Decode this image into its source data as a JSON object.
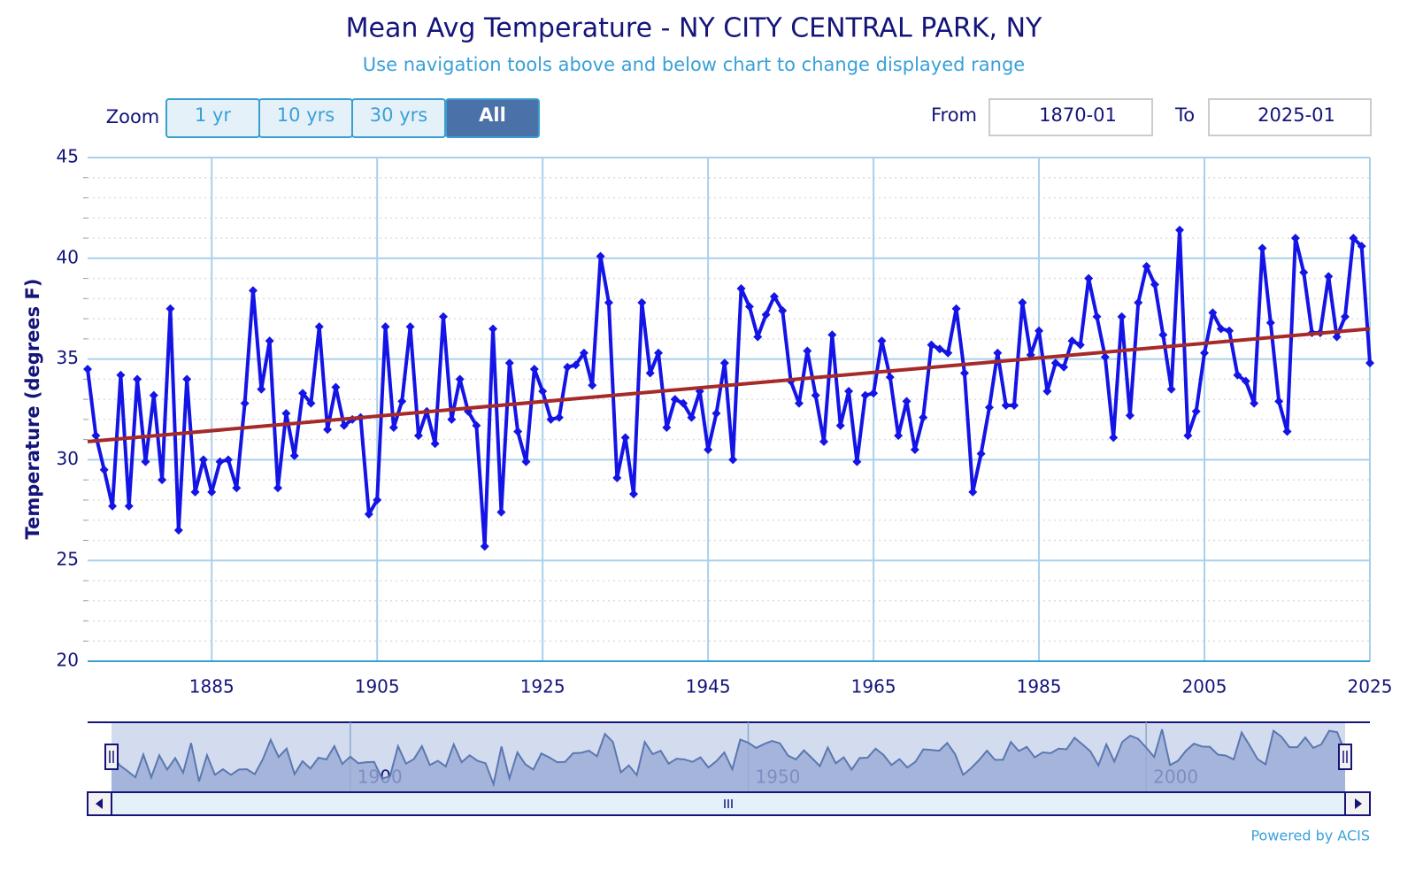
{
  "chart_data": {
    "type": "line",
    "title": "Mean Avg Temperature - NY CITY CENTRAL PARK, NY",
    "subtitle": "Use navigation tools above and below chart to change displayed range",
    "y_label": "Temperature (degrees F)",
    "x": [
      1870,
      1871,
      1872,
      1873,
      1874,
      1875,
      1876,
      1877,
      1878,
      1879,
      1880,
      1881,
      1882,
      1883,
      1884,
      1885,
      1886,
      1887,
      1888,
      1889,
      1890,
      1891,
      1892,
      1893,
      1894,
      1895,
      1896,
      1897,
      1898,
      1899,
      1900,
      1901,
      1902,
      1903,
      1904,
      1905,
      1906,
      1907,
      1908,
      1909,
      1910,
      1911,
      1912,
      1913,
      1914,
      1915,
      1916,
      1917,
      1918,
      1919,
      1920,
      1921,
      1922,
      1923,
      1924,
      1925,
      1926,
      1927,
      1928,
      1929,
      1930,
      1931,
      1932,
      1933,
      1934,
      1935,
      1936,
      1937,
      1938,
      1939,
      1940,
      1941,
      1942,
      1943,
      1944,
      1945,
      1946,
      1947,
      1948,
      1949,
      1950,
      1951,
      1952,
      1953,
      1954,
      1955,
      1956,
      1957,
      1958,
      1959,
      1960,
      1961,
      1962,
      1963,
      1964,
      1965,
      1966,
      1967,
      1968,
      1969,
      1970,
      1971,
      1972,
      1973,
      1974,
      1975,
      1976,
      1977,
      1978,
      1979,
      1980,
      1981,
      1982,
      1983,
      1984,
      1985,
      1986,
      1987,
      1988,
      1989,
      1990,
      1991,
      1992,
      1993,
      1994,
      1995,
      1996,
      1997,
      1998,
      1999,
      2000,
      2001,
      2002,
      2003,
      2004,
      2005,
      2006,
      2007,
      2008,
      2009,
      2010,
      2011,
      2012,
      2013,
      2014,
      2015,
      2016,
      2017,
      2018,
      2019,
      2020,
      2021,
      2022,
      2023,
      2024,
      2025
    ],
    "series": [
      {
        "color": "#1414e6",
        "values": [
          34.5,
          31.2,
          29.5,
          27.7,
          34.2,
          27.7,
          34.0,
          29.9,
          33.2,
          29.0,
          37.5,
          26.5,
          34.0,
          28.4,
          30.0,
          28.4,
          29.9,
          30.0,
          28.6,
          32.8,
          38.4,
          33.5,
          35.9,
          28.6,
          32.3,
          30.2,
          33.3,
          32.8,
          36.6,
          31.5,
          33.6,
          31.7,
          32.0,
          32.1,
          27.3,
          28.0,
          36.6,
          31.6,
          32.9,
          36.6,
          31.2,
          32.4,
          30.8,
          37.1,
          32.0,
          34.0,
          32.4,
          31.7,
          25.7,
          36.5,
          27.4,
          34.8,
          31.4,
          29.9,
          34.5,
          33.4,
          32.0,
          32.1,
          34.6,
          34.7,
          35.3,
          33.7,
          40.1,
          37.8,
          29.1,
          31.1,
          28.3,
          37.8,
          34.3,
          35.3,
          31.6,
          33.0,
          32.8,
          32.1,
          33.4,
          30.5,
          32.3,
          34.8,
          30.0,
          38.5,
          37.6,
          36.1,
          37.2,
          38.1,
          37.4,
          33.9,
          32.8,
          35.4,
          33.2,
          30.9,
          36.2,
          31.7,
          33.4,
          29.9,
          33.2,
          33.3,
          35.9,
          34.1,
          31.2,
          32.9,
          30.5,
          32.1,
          35.7,
          35.5,
          35.3,
          37.5,
          34.3,
          28.4,
          30.3,
          32.6,
          35.3,
          32.7,
          32.7,
          37.8,
          35.2,
          36.4,
          33.4,
          34.8,
          34.6,
          35.9,
          35.7,
          39.0,
          37.1,
          35.1,
          31.1,
          37.1,
          32.2,
          37.8,
          39.6,
          38.7,
          36.2,
          33.5,
          41.4,
          31.2,
          32.4,
          35.3,
          37.3,
          36.5,
          36.4,
          34.2,
          33.9,
          32.8,
          40.5,
          36.8,
          32.9,
          31.4,
          41.0,
          39.3,
          36.3,
          36.3,
          39.1,
          36.1,
          37.1,
          41.0,
          40.6,
          34.8
        ]
      }
    ],
    "trend_line": {
      "x": [
        1870,
        2025
      ],
      "values": [
        30.9,
        36.5
      ],
      "color": "#a52a2a"
    },
    "xlim": [
      1870,
      2025
    ],
    "xticks": [
      1885,
      1905,
      1925,
      1945,
      1965,
      1985,
      2005,
      2025
    ],
    "ylim": [
      20,
      45
    ],
    "yticks": [
      20,
      25,
      30,
      35,
      40,
      45
    ],
    "yminorticks": [
      21,
      22,
      23,
      24,
      26,
      27,
      28,
      29,
      31,
      32,
      33,
      34,
      36,
      37,
      38,
      39,
      41,
      42,
      43,
      44
    ],
    "grid": true,
    "navigator": {
      "xticks": [
        1900,
        1950,
        2000
      ]
    }
  },
  "ui": {
    "zoom_label": "Zoom",
    "buttons": [
      "1 yr",
      "10 yrs",
      "30 yrs",
      "All"
    ],
    "selected": 3,
    "from_label": "From",
    "from_value": "1870-01",
    "to_label": "To",
    "to_value": "2025-01",
    "credit": "Powered by ACIS"
  }
}
